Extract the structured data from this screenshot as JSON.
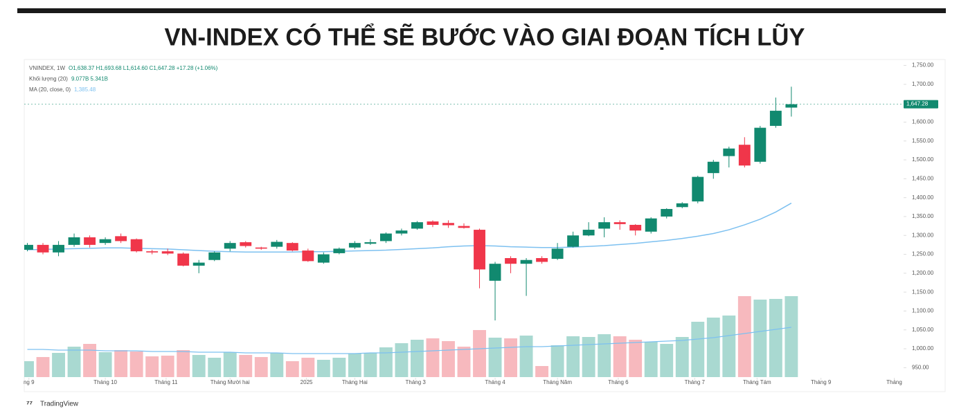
{
  "chart_data": {
    "type": "candlestick",
    "title": "VN-INDEX CÓ THỂ SẼ BƯỚC VÀO GIAI ĐOẠN TÍCH LŨY",
    "legend": [
      {
        "name": "VNINDEX, 1W",
        "value": "O1,638.37 H1,693.68 L1,614.60 C1,647.28 +17.28 (+1.06%)"
      },
      {
        "name": "Khối lượng (20)",
        "value": "9.077B 5.341B"
      },
      {
        "name": "MA (20, close, 0)",
        "value": "1,385.48"
      }
    ],
    "last_label": "1,647.28",
    "brand": "TradingView",
    "up_color": "#11896f",
    "down_color": "#f0364a",
    "up_volume_color": "#a9d9d1",
    "down_volume_color": "#f7b9be",
    "ma_color": "#7cc0f0",
    "xlim": [
      -0.2,
      56.2
    ],
    "xticks": [
      {
        "value": 0.1,
        "label": "ng 9"
      },
      {
        "value": 5,
        "label": "Tháng 10"
      },
      {
        "value": 8.9,
        "label": "Tháng 11"
      },
      {
        "value": 13,
        "label": "Tháng Mười hai"
      },
      {
        "value": 17.9,
        "label": "2025"
      },
      {
        "value": 21,
        "label": "Tháng Hai"
      },
      {
        "value": 24.9,
        "label": "Tháng 3"
      },
      {
        "value": 30,
        "label": "Tháng 4"
      },
      {
        "value": 34,
        "label": "Tháng Năm"
      },
      {
        "value": 37.9,
        "label": "Tháng 6"
      },
      {
        "value": 42.8,
        "label": "Tháng 7"
      },
      {
        "value": 46.8,
        "label": "Tháng Tám"
      },
      {
        "value": 50.9,
        "label": "Tháng 9"
      },
      {
        "value": 55.6,
        "label": "Tháng"
      }
    ],
    "ylim": [
      925,
      1762
    ],
    "yticks": [
      {
        "value": 950,
        "label": "950.00"
      },
      {
        "value": 1000,
        "label": "1,000.00"
      },
      {
        "value": 1050,
        "label": "1,050.00"
      },
      {
        "value": 1100,
        "label": "1,100.00"
      },
      {
        "value": 1150,
        "label": "1,150.00"
      },
      {
        "value": 1200,
        "label": "1,200.00"
      },
      {
        "value": 1250,
        "label": "1,250.00"
      },
      {
        "value": 1300,
        "label": "1,300.00"
      },
      {
        "value": 1350,
        "label": "1,350.00"
      },
      {
        "value": 1400,
        "label": "1,400.00"
      },
      {
        "value": 1450,
        "label": "1,450.00"
      },
      {
        "value": 1500,
        "label": "1,500.00"
      },
      {
        "value": 1550,
        "label": "1,550.00"
      },
      {
        "value": 1600,
        "label": "1,600.00"
      },
      {
        "value": 1700,
        "label": "1,700.00"
      },
      {
        "value": 1750,
        "label": "1,750.00"
      }
    ],
    "open": [
      1262,
      1275,
      1255,
      1275,
      1295,
      1280,
      1298,
      1290,
      1258,
      1258,
      1252,
      1220,
      1235,
      1265,
      1282,
      1268,
      1270,
      1280,
      1260,
      1228,
      1253,
      1268,
      1278,
      1285,
      1305,
      1318,
      1337,
      1333,
      1325,
      1315,
      1180,
      1240,
      1225,
      1240,
      1238,
      1270,
      1300,
      1318,
      1335,
      1328,
      1310,
      1350,
      1375,
      1390,
      1465,
      1510,
      1540,
      1495,
      1590,
      1638.37
    ],
    "high": [
      1280,
      1280,
      1285,
      1305,
      1300,
      1295,
      1305,
      1292,
      1262,
      1265,
      1255,
      1235,
      1258,
      1285,
      1285,
      1270,
      1288,
      1282,
      1265,
      1255,
      1268,
      1285,
      1290,
      1308,
      1318,
      1338,
      1340,
      1340,
      1332,
      1318,
      1230,
      1245,
      1240,
      1245,
      1280,
      1310,
      1335,
      1348,
      1340,
      1330,
      1348,
      1372,
      1388,
      1458,
      1500,
      1535,
      1560,
      1590,
      1665,
      1693.68
    ],
    "low": [
      1258,
      1250,
      1245,
      1270,
      1268,
      1275,
      1280,
      1255,
      1250,
      1248,
      1218,
      1200,
      1232,
      1258,
      1268,
      1262,
      1265,
      1258,
      1230,
      1225,
      1250,
      1264,
      1275,
      1280,
      1300,
      1315,
      1322,
      1320,
      1318,
      1160,
      1075,
      1200,
      1140,
      1225,
      1235,
      1268,
      1298,
      1295,
      1315,
      1300,
      1305,
      1345,
      1372,
      1385,
      1450,
      1480,
      1480,
      1490,
      1585,
      1614.6
    ],
    "close": [
      1275,
      1255,
      1275,
      1295,
      1275,
      1290,
      1285,
      1258,
      1255,
      1252,
      1220,
      1228,
      1255,
      1280,
      1272,
      1265,
      1283,
      1260,
      1232,
      1250,
      1265,
      1280,
      1282,
      1305,
      1313,
      1335,
      1328,
      1327,
      1320,
      1210,
      1225,
      1225,
      1235,
      1230,
      1265,
      1300,
      1315,
      1335,
      1330,
      1313,
      1345,
      1370,
      1385,
      1455,
      1495,
      1530,
      1485,
      1585,
      1630,
      1647.28
    ],
    "ma": [
      1262,
      1263,
      1264,
      1265,
      1266,
      1267,
      1267,
      1266,
      1265,
      1264,
      1262,
      1260,
      1258,
      1257,
      1256,
      1256,
      1256,
      1256,
      1257,
      1257,
      1258,
      1259,
      1260,
      1261,
      1263,
      1265,
      1267,
      1270,
      1272,
      1273,
      1272,
      1270,
      1269,
      1268,
      1268,
      1269,
      1271,
      1273,
      1276,
      1279,
      1283,
      1287,
      1292,
      1298,
      1305,
      1315,
      1328,
      1343,
      1362,
      1385.48
    ],
    "volume_lim": [
      0,
      457
    ],
    "volume": [
      23,
      29,
      35,
      44,
      48,
      36,
      39,
      37,
      30,
      31,
      39,
      32,
      28,
      36,
      32,
      29,
      35,
      23,
      28,
      25,
      28,
      34,
      35,
      43,
      49,
      54,
      56,
      52,
      44,
      68,
      57,
      56,
      60,
      16,
      46,
      59,
      58,
      62,
      59,
      54,
      51,
      48,
      58,
      80,
      86,
      89,
      117,
      112,
      113,
      117
    ],
    "volume_ma": [
      40,
      40,
      39,
      39,
      39,
      38,
      38,
      38,
      37,
      37,
      37,
      36,
      36,
      36,
      35,
      35,
      35,
      34,
      34,
      34,
      34,
      34,
      35,
      35,
      36,
      37,
      38,
      39,
      40,
      41,
      42,
      43,
      44,
      44,
      45,
      46,
      47,
      48,
      49,
      50,
      51,
      52,
      53,
      55,
      57,
      60,
      63,
      66,
      69,
      72
    ]
  }
}
